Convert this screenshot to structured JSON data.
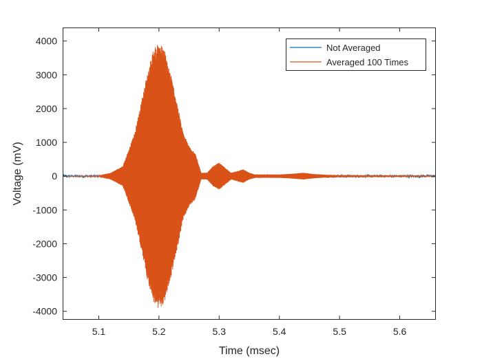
{
  "chart_data": {
    "type": "line",
    "title": "",
    "xlabel": "Time (msec)",
    "ylabel": "Voltage (mV)",
    "xlim": [
      5.04,
      5.66
    ],
    "ylim": [
      -4250,
      4400
    ],
    "x_ticks": [
      5.1,
      5.2,
      5.3,
      5.4,
      5.5,
      5.6
    ],
    "x_tick_labels": [
      "5.1",
      "5.2",
      "5.3",
      "5.4",
      "5.5",
      "5.6"
    ],
    "y_ticks": [
      -4000,
      -3000,
      -2000,
      -1000,
      0,
      1000,
      2000,
      3000,
      4000
    ],
    "y_tick_labels": [
      "-4000",
      "-3000",
      "-2000",
      "-1000",
      "0",
      "1000",
      "2000",
      "3000",
      "4000"
    ],
    "grid": false,
    "legend_position": "top-right",
    "series": [
      {
        "name": "Not Averaged",
        "color": "#0072BD",
        "noise_amplitude_mV": 40
      },
      {
        "name": "Averaged 100 Times",
        "color": "#D95319",
        "envelope": {
          "x": [
            5.04,
            5.1,
            5.12,
            5.14,
            5.16,
            5.18,
            5.19,
            5.2,
            5.21,
            5.22,
            5.23,
            5.24,
            5.25,
            5.26,
            5.27,
            5.28,
            5.29,
            5.3,
            5.31,
            5.32,
            5.33,
            5.34,
            5.35,
            5.36,
            5.38,
            5.4,
            5.42,
            5.44,
            5.46,
            5.48,
            5.5,
            5.66
          ],
          "amplitude_mV": [
            10,
            20,
            100,
            300,
            1300,
            3000,
            3700,
            4000,
            3700,
            3000,
            2200,
            1300,
            900,
            700,
            100,
            100,
            300,
            400,
            250,
            100,
            150,
            200,
            100,
            50,
            50,
            50,
            70,
            100,
            60,
            40,
            30,
            20
          ]
        }
      }
    ]
  }
}
